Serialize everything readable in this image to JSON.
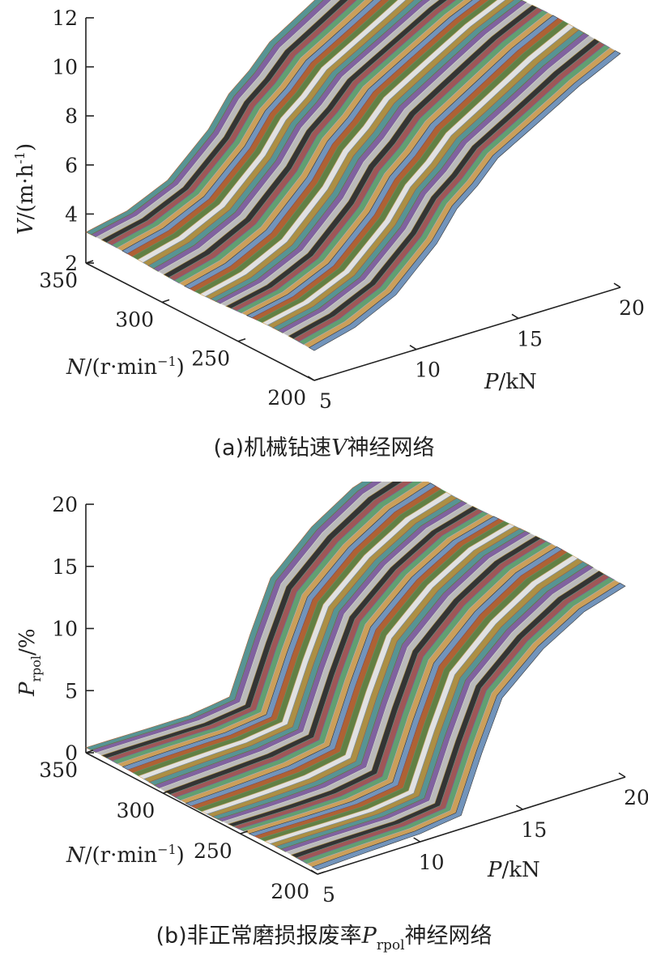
{
  "chart_data": [
    {
      "type": "surface",
      "caption_prefix": "(a)",
      "caption_text1": "机械钻速",
      "caption_var": "V",
      "caption_sub": "",
      "caption_text2": "神经网络",
      "zlabel_var": "V",
      "zlabel_unit": "/(m·h",
      "zlabel_exp": "-1",
      "zlabel_close": ")",
      "ylabel_var": "N",
      "ylabel_unit": "/(r·min",
      "ylabel_exp": "−1",
      "ylabel_close": ")",
      "xlabel_var": "P",
      "xlabel_unit": "/kN",
      "zlim": [
        2,
        12
      ],
      "z_ticks": [
        "2",
        "4",
        "6",
        "8",
        "10",
        "12"
      ],
      "x_ticks": [
        "5",
        "10",
        "15",
        "20"
      ],
      "y_ticks": [
        "200",
        "250",
        "300",
        "350"
      ],
      "xlim": [
        5,
        20
      ],
      "ylim": [
        200,
        350
      ],
      "z_profile": {
        "P": [
          5,
          7,
          9,
          11,
          12,
          13,
          14,
          16,
          18,
          20
        ],
        "value": [
          3.2,
          3.6,
          4.4,
          6.0,
          7.2,
          7.9,
          8.8,
          9.8,
          10.8,
          11.6
        ]
      }
    },
    {
      "type": "surface",
      "caption_prefix": "(b)",
      "caption_text1": "非正常磨损报废率",
      "caption_var": "P",
      "caption_sub": "rpol",
      "caption_text2": "神经网络",
      "zlabel_var": "P",
      "zlabel_sub": "rpol",
      "zlabel_unit": "/%",
      "ylabel_var": "N",
      "ylabel_unit": "/(r·min",
      "ylabel_exp": "−1",
      "ylabel_close": ")",
      "xlabel_var": "P",
      "xlabel_unit": "/kN",
      "zlim": [
        0,
        20
      ],
      "z_ticks": [
        "0",
        "5",
        "10",
        "15",
        "20"
      ],
      "x_ticks": [
        "5",
        "10",
        "15",
        "20"
      ],
      "y_ticks": [
        "200",
        "250",
        "300",
        "350"
      ],
      "xlim": [
        5,
        20
      ],
      "ylim": [
        200,
        350
      ],
      "z_profile": {
        "P": [
          5,
          8,
          10,
          12,
          13,
          14,
          16,
          18,
          20
        ],
        "value": [
          0.3,
          0.4,
          0.5,
          1.0,
          5.5,
          9.5,
          12.5,
          14.5,
          15.5
        ]
      }
    }
  ]
}
